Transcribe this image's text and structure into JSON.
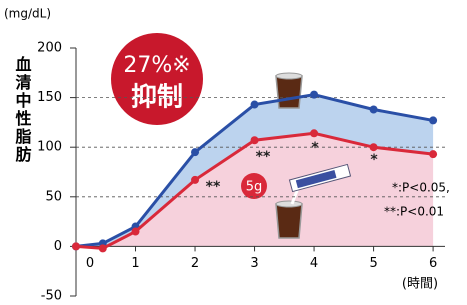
{
  "chart_data": {
    "type": "line",
    "y_unit": "(mg/dL)",
    "y_label": "血清中性脂肪",
    "x_label": "(時間)",
    "x": [
      0,
      0.45,
      1,
      2,
      3,
      4,
      5,
      6
    ],
    "series": [
      {
        "color": "#2a4fa6",
        "values": [
          0,
          3,
          20,
          95,
          143,
          153,
          138,
          127
        ]
      },
      {
        "color": "#d9293a",
        "values": [
          0,
          -2,
          15,
          67,
          107,
          114,
          100,
          93
        ]
      }
    ],
    "xlim": [
      0,
      6.2
    ],
    "xticks": [
      0,
      1,
      2,
      3,
      4,
      5,
      6
    ],
    "ylim": [
      -50,
      200
    ],
    "yticks": [
      -50,
      0,
      50,
      100,
      150,
      200
    ],
    "grid": true,
    "badge": {
      "line1": "27%※",
      "line2": "抑制"
    },
    "dose": "5g",
    "stars": [
      "**",
      "**",
      "*",
      "*"
    ],
    "notes": [
      "*:P<0.05,",
      "**:P<0.01"
    ]
  }
}
